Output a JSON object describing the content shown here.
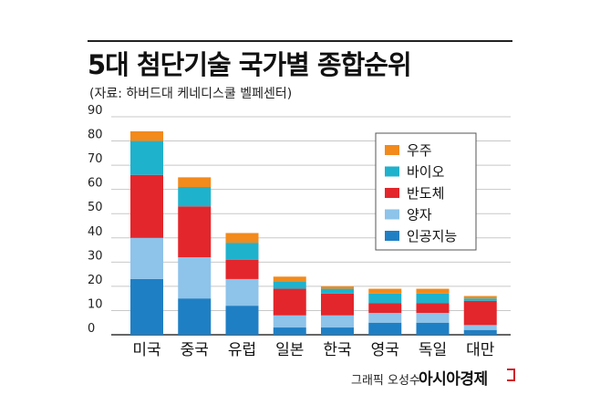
{
  "title": "5대 첨단기술 국가별 종합순위",
  "subtitle": "(자료: 하버드대 케네디스쿨 벨페센터)",
  "credit": "그래픽 오성수",
  "brand": "아시아경제",
  "chart_data": {
    "type": "bar",
    "stacked": true,
    "categories": [
      "미국",
      "중국",
      "유럽",
      "일본",
      "한국",
      "영국",
      "독일",
      "대만"
    ],
    "ylim": [
      0,
      90
    ],
    "yticks": [
      0,
      10,
      20,
      30,
      40,
      50,
      60,
      70,
      80,
      90
    ],
    "grid": true,
    "legend_position": "right",
    "series": [
      {
        "name": "인공지능",
        "color": "#1f7fc4",
        "values": [
          23,
          15,
          12,
          3,
          3,
          5,
          5,
          2
        ]
      },
      {
        "name": "양자",
        "color": "#8ec3ea",
        "values": [
          17,
          17,
          11,
          5,
          5,
          4,
          4,
          2
        ]
      },
      {
        "name": "반도체",
        "color": "#e3262b",
        "values": [
          26,
          21,
          8,
          11,
          9,
          4,
          4,
          10
        ]
      },
      {
        "name": "바이오",
        "color": "#1fb2cc",
        "values": [
          14,
          8,
          7,
          3,
          2,
          4,
          4,
          1
        ]
      },
      {
        "name": "우주",
        "color": "#f28a1c",
        "values": [
          4,
          4,
          4,
          2,
          1,
          2,
          2,
          1
        ]
      }
    ]
  }
}
